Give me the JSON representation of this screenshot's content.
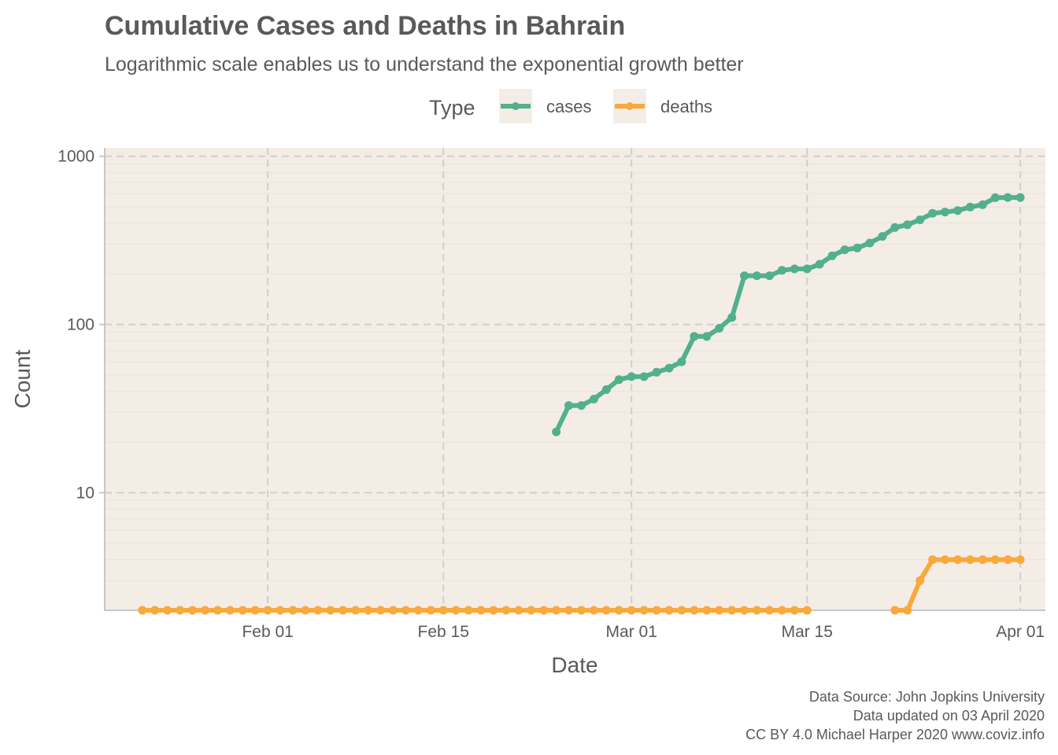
{
  "chart_data": {
    "type": "line",
    "title": "Cumulative Cases and Deaths in Bahrain",
    "subtitle": "Logarithmic scale enables us to understand the exponential growth better",
    "xlabel": "Date",
    "ylabel": "Count",
    "y_scale": "log10",
    "ylim": [
      2,
      1000
    ],
    "xlim": [
      "2020-01-19",
      "2020-04-03"
    ],
    "x_ticks": [
      {
        "date": "2020-02-01",
        "label": "Feb 01"
      },
      {
        "date": "2020-02-15",
        "label": "Feb 15"
      },
      {
        "date": "2020-03-01",
        "label": "Mar 01"
      },
      {
        "date": "2020-03-15",
        "label": "Mar 15"
      },
      {
        "date": "2020-04-01",
        "label": "Apr 01"
      }
    ],
    "y_ticks": [
      {
        "value": 10,
        "label": "10"
      },
      {
        "value": 100,
        "label": "100"
      },
      {
        "value": 1000,
        "label": "1000"
      }
    ],
    "grid": true,
    "legend": {
      "title": "Type",
      "position": "top"
    },
    "series": [
      {
        "name": "cases",
        "color": "#52b08c",
        "points": [
          [
            "2020-02-24",
            23
          ],
          [
            "2020-02-25",
            33
          ],
          [
            "2020-02-26",
            33
          ],
          [
            "2020-02-27",
            36
          ],
          [
            "2020-02-28",
            41
          ],
          [
            "2020-02-29",
            47
          ],
          [
            "2020-03-01",
            49
          ],
          [
            "2020-03-02",
            49
          ],
          [
            "2020-03-03",
            52
          ],
          [
            "2020-03-04",
            55
          ],
          [
            "2020-03-05",
            60
          ],
          [
            "2020-03-06",
            85
          ],
          [
            "2020-03-07",
            85
          ],
          [
            "2020-03-08",
            95
          ],
          [
            "2020-03-09",
            110
          ],
          [
            "2020-03-10",
            195
          ],
          [
            "2020-03-11",
            195
          ],
          [
            "2020-03-12",
            195
          ],
          [
            "2020-03-13",
            210
          ],
          [
            "2020-03-14",
            214
          ],
          [
            "2020-03-15",
            214
          ],
          [
            "2020-03-16",
            228
          ],
          [
            "2020-03-17",
            256
          ],
          [
            "2020-03-18",
            278
          ],
          [
            "2020-03-19",
            285
          ],
          [
            "2020-03-20",
            305
          ],
          [
            "2020-03-21",
            334
          ],
          [
            "2020-03-22",
            377
          ],
          [
            "2020-03-23",
            392
          ],
          [
            "2020-03-24",
            419
          ],
          [
            "2020-03-25",
            458
          ],
          [
            "2020-03-26",
            466
          ],
          [
            "2020-03-27",
            476
          ],
          [
            "2020-03-28",
            499
          ],
          [
            "2020-03-29",
            515
          ],
          [
            "2020-03-30",
            567
          ],
          [
            "2020-03-31",
            569
          ],
          [
            "2020-04-01",
            569
          ]
        ]
      },
      {
        "name": "deaths",
        "color": "#f9a93c",
        "segments": [
          [
            [
              "2020-01-22",
              2
            ],
            [
              "2020-01-23",
              2
            ],
            [
              "2020-01-24",
              2
            ],
            [
              "2020-01-25",
              2
            ],
            [
              "2020-01-26",
              2
            ],
            [
              "2020-01-27",
              2
            ],
            [
              "2020-01-28",
              2
            ],
            [
              "2020-01-29",
              2
            ],
            [
              "2020-01-30",
              2
            ],
            [
              "2020-01-31",
              2
            ],
            [
              "2020-02-01",
              2
            ],
            [
              "2020-02-02",
              2
            ],
            [
              "2020-02-03",
              2
            ],
            [
              "2020-02-04",
              2
            ],
            [
              "2020-02-05",
              2
            ],
            [
              "2020-02-06",
              2
            ],
            [
              "2020-02-07",
              2
            ],
            [
              "2020-02-08",
              2
            ],
            [
              "2020-02-09",
              2
            ],
            [
              "2020-02-10",
              2
            ],
            [
              "2020-02-11",
              2
            ],
            [
              "2020-02-12",
              2
            ],
            [
              "2020-02-13",
              2
            ],
            [
              "2020-02-14",
              2
            ],
            [
              "2020-02-15",
              2
            ],
            [
              "2020-02-16",
              2
            ],
            [
              "2020-02-17",
              2
            ],
            [
              "2020-02-18",
              2
            ],
            [
              "2020-02-19",
              2
            ],
            [
              "2020-02-20",
              2
            ],
            [
              "2020-02-21",
              2
            ],
            [
              "2020-02-22",
              2
            ],
            [
              "2020-02-23",
              2
            ],
            [
              "2020-02-24",
              2
            ],
            [
              "2020-02-25",
              2
            ],
            [
              "2020-02-26",
              2
            ],
            [
              "2020-02-27",
              2
            ],
            [
              "2020-02-28",
              2
            ],
            [
              "2020-02-29",
              2
            ],
            [
              "2020-03-01",
              2
            ],
            [
              "2020-03-02",
              2
            ],
            [
              "2020-03-03",
              2
            ],
            [
              "2020-03-04",
              2
            ],
            [
              "2020-03-05",
              2
            ],
            [
              "2020-03-06",
              2
            ],
            [
              "2020-03-07",
              2
            ],
            [
              "2020-03-08",
              2
            ],
            [
              "2020-03-09",
              2
            ],
            [
              "2020-03-10",
              2
            ],
            [
              "2020-03-11",
              2
            ],
            [
              "2020-03-12",
              2
            ],
            [
              "2020-03-13",
              2
            ],
            [
              "2020-03-14",
              2
            ],
            [
              "2020-03-15",
              2
            ]
          ],
          [
            [
              "2020-03-22",
              2
            ],
            [
              "2020-03-23",
              2
            ],
            [
              "2020-03-24",
              3
            ],
            [
              "2020-03-25",
              4
            ],
            [
              "2020-03-26",
              4
            ],
            [
              "2020-03-27",
              4
            ],
            [
              "2020-03-28",
              4
            ],
            [
              "2020-03-29",
              4
            ],
            [
              "2020-03-30",
              4
            ],
            [
              "2020-03-31",
              4
            ],
            [
              "2020-04-01",
              4
            ]
          ]
        ]
      }
    ],
    "caption": [
      "Data Source: John Jopkins University",
      "Data updated on 03 April 2020",
      "CC BY 4.0 Michael Harper 2020 www.coviz.info"
    ]
  }
}
